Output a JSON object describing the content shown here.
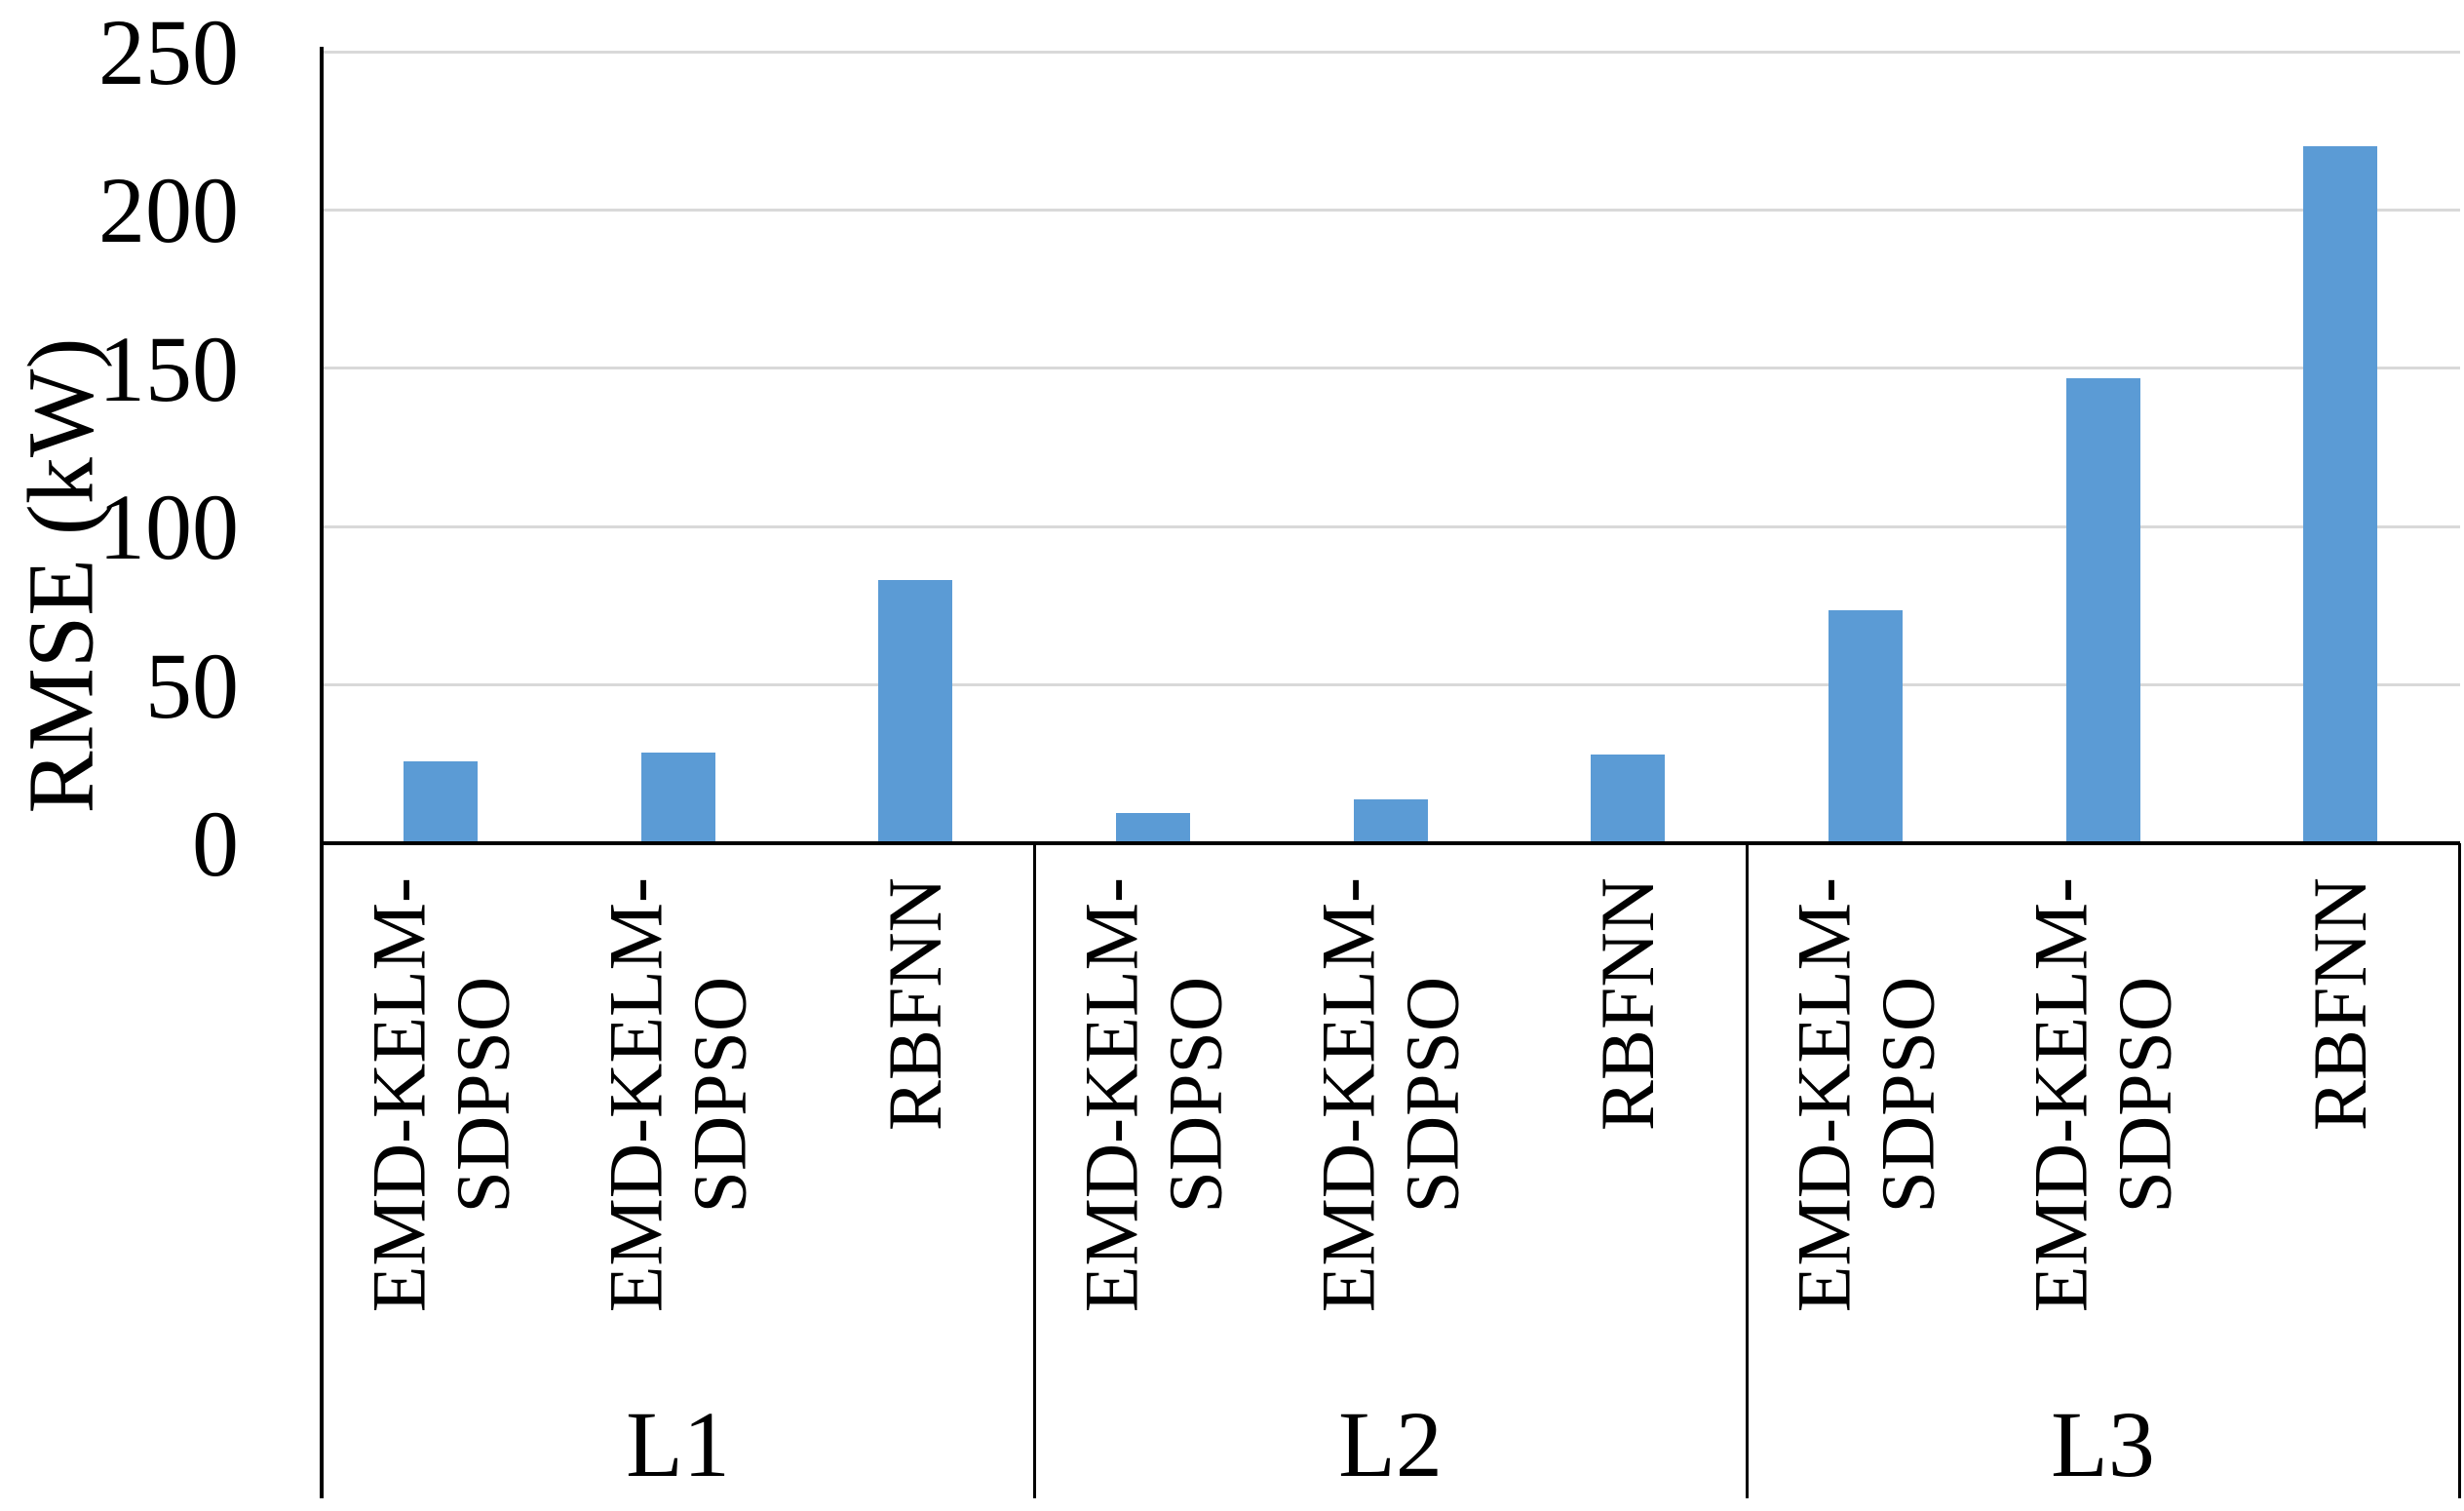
{
  "chart_data": {
    "type": "bar",
    "title": "",
    "xlabel": "",
    "ylabel": "RMSE (kW)",
    "ylim": [
      0,
      250
    ],
    "yticks": [
      0,
      50,
      100,
      150,
      200,
      250
    ],
    "grid": "horizontal gridlines at every 50",
    "legend_position": "none",
    "bar_color": "#5b9bd5",
    "gridline_color": "#d9d9d9",
    "axis_color": "#000000",
    "groups": [
      {
        "label": "L1",
        "categories": [
          {
            "lines": [
              "EMD-KELM-",
              "SDPSO"
            ]
          },
          {
            "lines": [
              "EMD-KELM-",
              "SDPSO"
            ]
          },
          {
            "lines": [
              "RBFNN"
            ]
          }
        ],
        "values": [
          26,
          28.5,
          83
        ]
      },
      {
        "label": "L2",
        "categories": [
          {
            "lines": [
              "EMD-KELM-",
              "SDPSO"
            ]
          },
          {
            "lines": [
              "EMD-KELM-",
              "SDPSO"
            ]
          },
          {
            "lines": [
              "RBFNN"
            ]
          }
        ],
        "values": [
          9.5,
          14,
          28
        ]
      },
      {
        "label": "L3",
        "categories": [
          {
            "lines": [
              "EMD-KELM-",
              "SDPSO"
            ]
          },
          {
            "lines": [
              "EMD-KELM-",
              "SDPSO"
            ]
          },
          {
            "lines": [
              "RBFNN"
            ]
          }
        ],
        "values": [
          73.5,
          147,
          220
        ]
      }
    ]
  }
}
